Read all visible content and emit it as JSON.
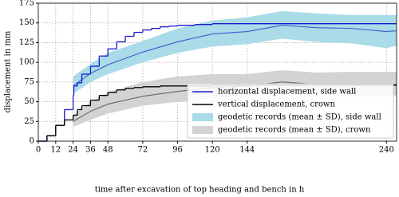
{
  "chart_data": {
    "type": "line",
    "x_label": "time after excavation of top heading and bench in h",
    "y_label": "displacement in mm",
    "xlim": [
      0,
      247
    ],
    "ylim": [
      0,
      175
    ],
    "xticks": [
      0,
      12,
      24,
      36,
      48,
      72,
      96,
      120,
      144,
      240
    ],
    "yticks": [
      0,
      25,
      50,
      75,
      100,
      125,
      150,
      175
    ],
    "grid": true,
    "legend": "lower right",
    "series": [
      {
        "name": "geodetic records (mean ± SD), side wall",
        "kind": "band",
        "color": "#a9dbe9",
        "line_color": "#3a5ccc",
        "x": [
          24,
          36,
          48,
          72,
          96,
          120,
          144,
          168,
          192,
          216,
          240,
          247
        ],
        "values": [
          70,
          86,
          97,
          113,
          126,
          136,
          139,
          147,
          144,
          143,
          139,
          140
        ],
        "lower": [
          60,
          75,
          85,
          100,
          112,
          120,
          123,
          130,
          126,
          124,
          118,
          121
        ],
        "upper": [
          82,
          98,
          112,
          127,
          143,
          153,
          157,
          165,
          162,
          160,
          160,
          160
        ]
      },
      {
        "name": "geodetic records (mean ± SD), crown",
        "kind": "band",
        "color": "#d3d3d3",
        "line_color": "#666666",
        "x": [
          24,
          36,
          48,
          72,
          96,
          120,
          144,
          168,
          192,
          216,
          247
        ],
        "values": [
          25,
          38,
          47,
          57,
          63,
          68,
          70,
          75,
          72,
          72,
          72
        ],
        "lower": [
          18,
          27,
          35,
          45,
          50,
          55,
          58,
          62,
          60,
          58,
          58
        ],
        "upper": [
          33,
          50,
          62,
          75,
          82,
          85,
          85,
          90,
          87,
          88,
          88
        ]
      },
      {
        "name": "horizontal displacement, side wall",
        "kind": "step",
        "color": "#1a1acc",
        "x": [
          0,
          6,
          12,
          18,
          24,
          24.5,
          27,
          30,
          36,
          42,
          48,
          54,
          60,
          66,
          72,
          78,
          84,
          90,
          96,
          108,
          120,
          247
        ],
        "values": [
          0,
          7,
          20,
          40,
          58,
          70,
          74,
          85,
          95,
          108,
          117,
          126,
          133,
          138,
          141,
          143,
          145,
          146,
          147,
          148,
          149,
          149
        ]
      },
      {
        "name": "vertical displacement, crown",
        "kind": "step",
        "color": "#000000",
        "x": [
          0,
          6,
          12,
          18,
          24,
          27,
          30,
          36,
          42,
          48,
          54,
          60,
          66,
          72,
          84,
          96,
          120,
          247
        ],
        "values": [
          0,
          7,
          20,
          27,
          33,
          40,
          45,
          52,
          58,
          62,
          65,
          67,
          68,
          69,
          70,
          70,
          71,
          71
        ]
      }
    ]
  }
}
